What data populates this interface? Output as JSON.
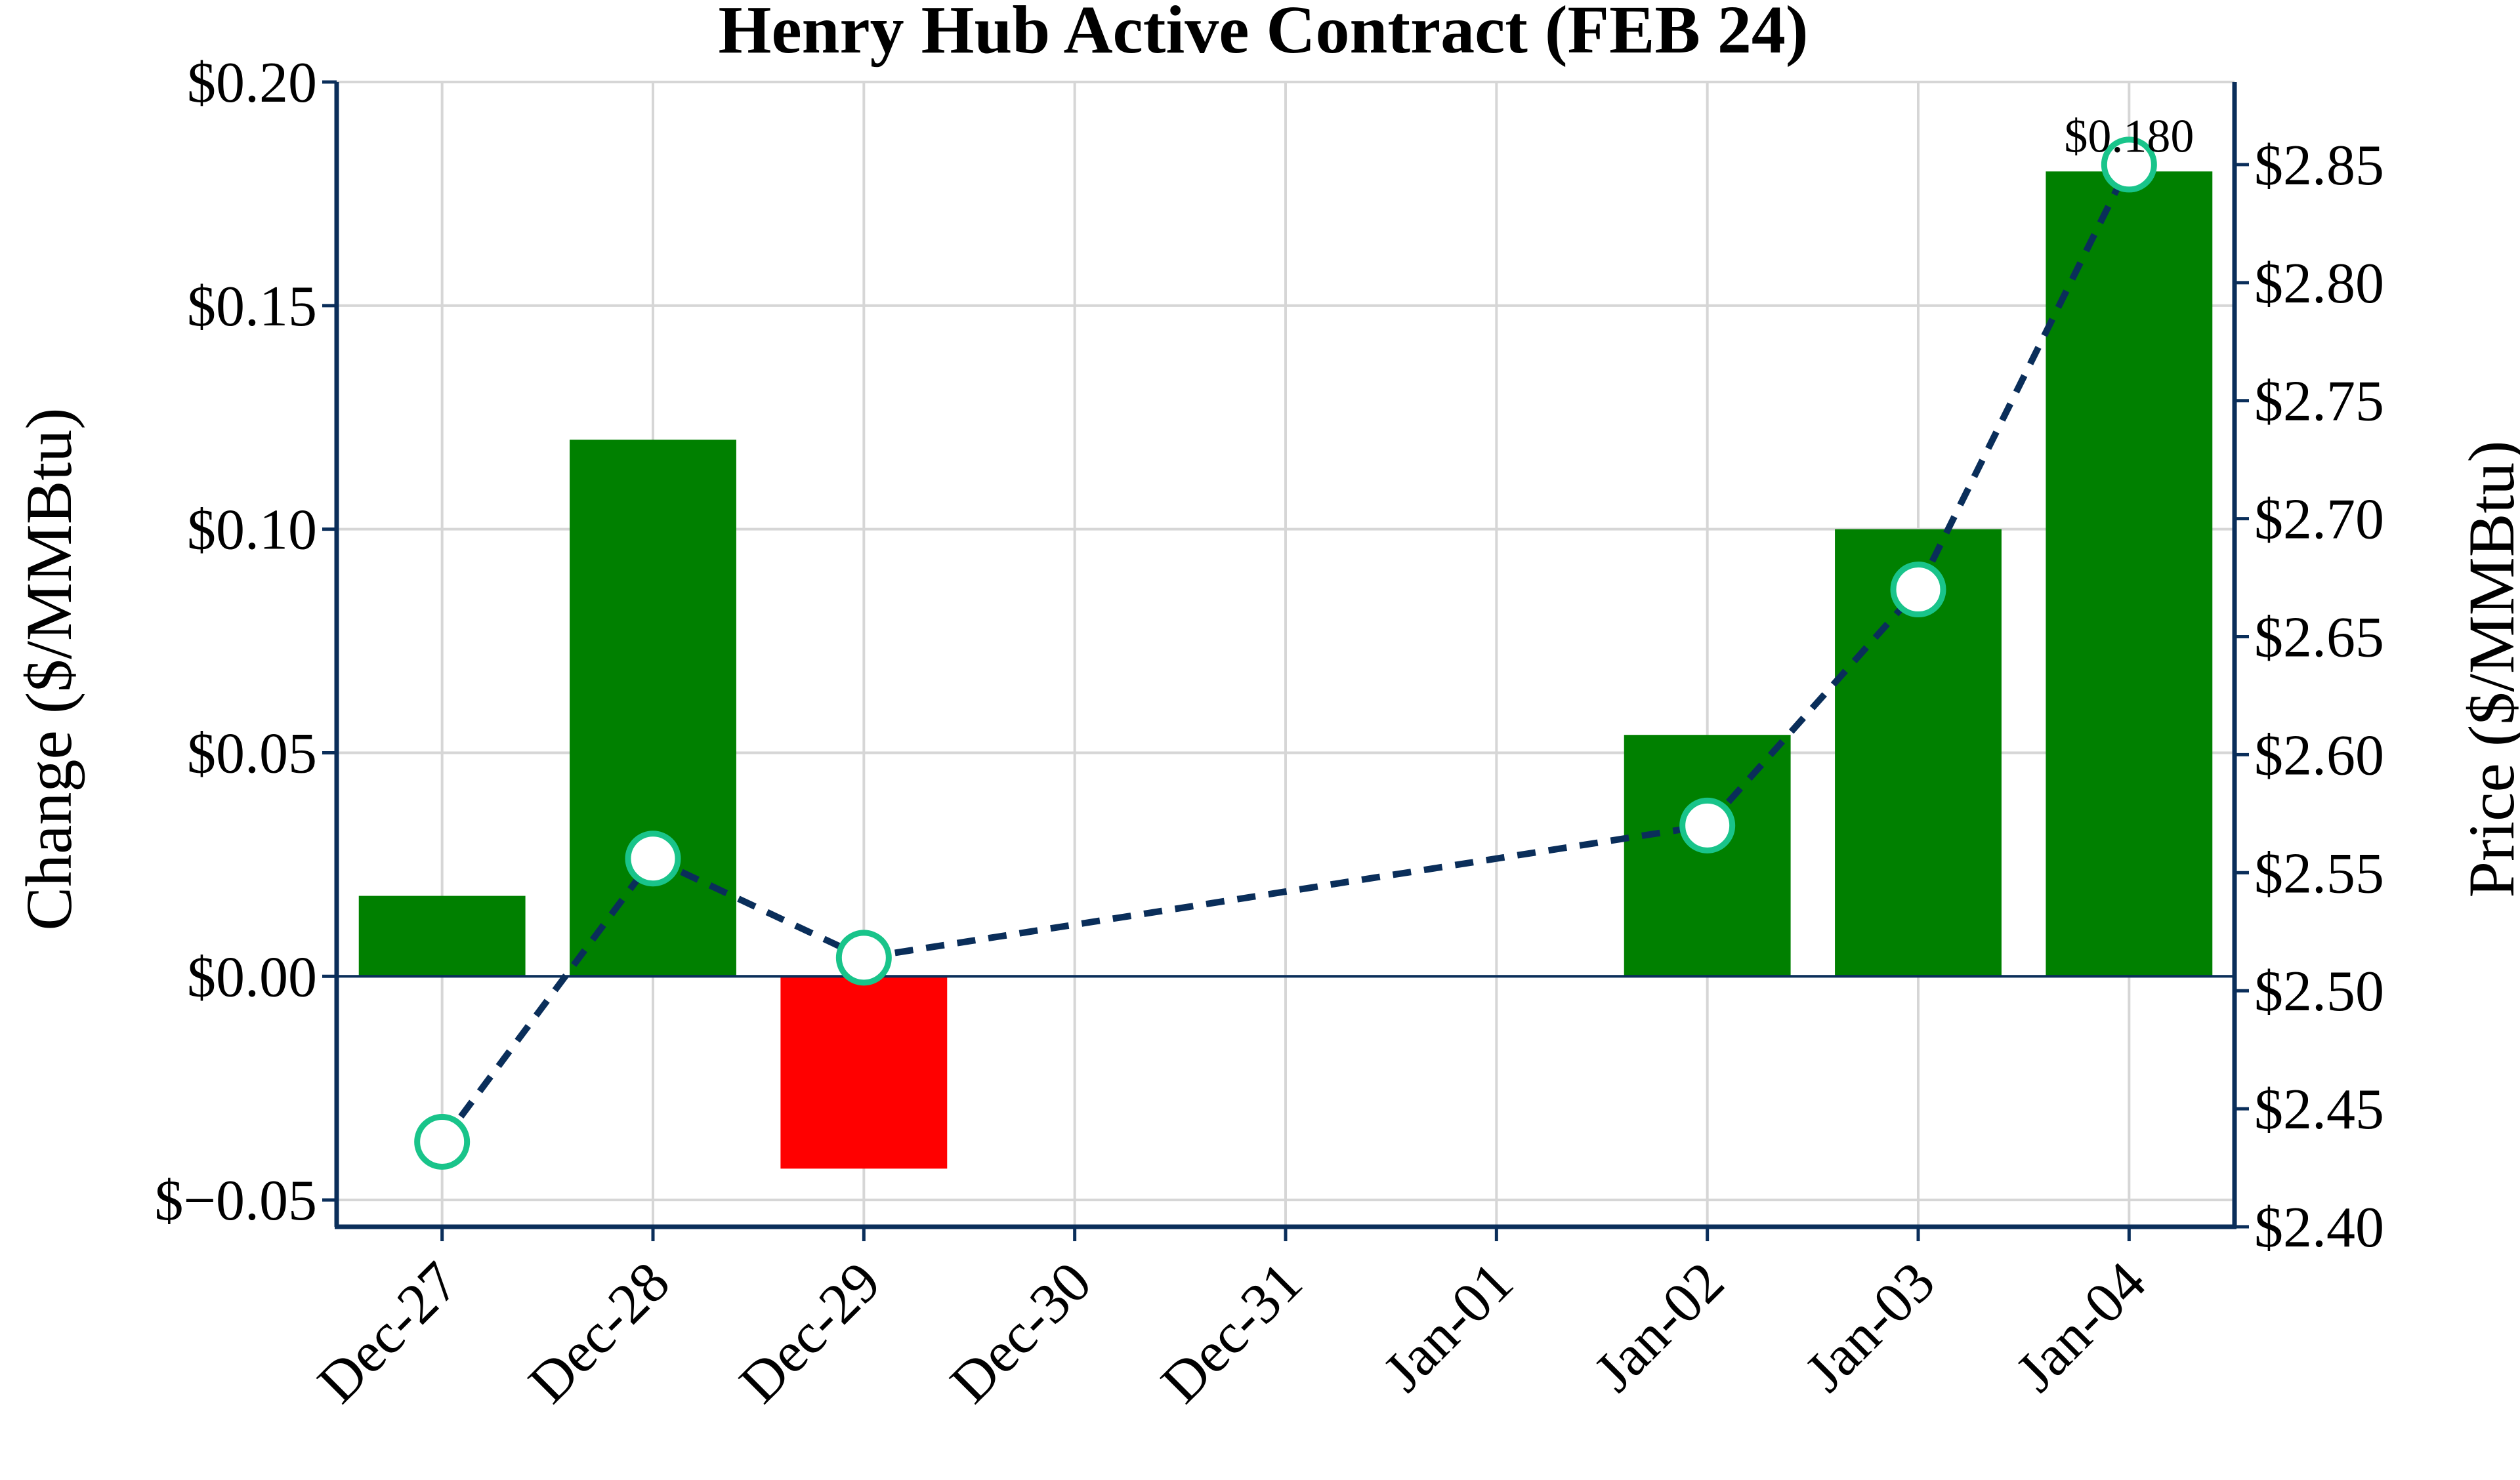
{
  "chart_data": {
    "type": "bar",
    "title": "Henry Hub Active Contract (FEB 24)",
    "xlabel": "",
    "ylabel": "Change ($/MMBtu)",
    "y2label": "Price ($/MMBtu)",
    "categories": [
      "Dec-27",
      "Dec-28",
      "Dec-29",
      "Dec-30",
      "Dec-31",
      "Jan-01",
      "Jan-02",
      "Jan-03",
      "Jan-04"
    ],
    "ylim": [
      -0.056,
      0.2
    ],
    "y2lim": [
      2.4,
      2.885
    ],
    "yticks": [
      -0.05,
      0.0,
      0.05,
      0.1,
      0.15,
      0.2
    ],
    "ytick_labels": [
      "$−0.05",
      "$0.00",
      "$0.05",
      "$0.10",
      "$0.15",
      "$0.20"
    ],
    "y2ticks": [
      2.4,
      2.45,
      2.5,
      2.55,
      2.6,
      2.65,
      2.7,
      2.75,
      2.8,
      2.85
    ],
    "y2tick_labels": [
      "$2.40",
      "$2.45",
      "$2.50",
      "$2.55",
      "$2.60",
      "$2.65",
      "$2.70",
      "$2.75",
      "$2.80",
      "$2.85"
    ],
    "grid": true,
    "series": [
      {
        "type": "bar",
        "axis": "left",
        "values": [
          0.018,
          0.12,
          -0.043,
          null,
          null,
          null,
          0.054,
          0.1,
          0.18
        ]
      },
      {
        "type": "line",
        "axis": "right",
        "style": "dashed",
        "marker": "circle",
        "values": [
          2.436,
          2.556,
          2.514,
          null,
          null,
          null,
          2.57,
          2.67,
          2.85
        ]
      }
    ],
    "annotations": [
      {
        "category": "Jan-04",
        "text": "$0.180"
      }
    ],
    "colors": {
      "positive": "#008000",
      "negative": "#ff0000",
      "line": "#0a2e5a",
      "marker_edge": "#19c48a",
      "marker_fill": "#ffffff",
      "axis": "#0a2e5a",
      "grid": "#d6d6d6"
    }
  }
}
